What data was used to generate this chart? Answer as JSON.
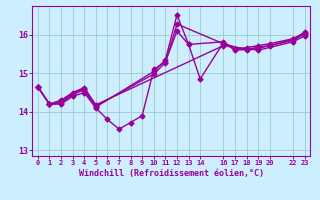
{
  "xlabel": "Windchill (Refroidissement éolien,°C)",
  "background_color": "#cceeff",
  "line_color": "#990099",
  "marker": "D",
  "markersize": 2.5,
  "linewidth": 1.0,
  "xlim": [
    -0.5,
    23.5
  ],
  "ylim": [
    12.85,
    16.75
  ],
  "yticks": [
    13,
    14,
    15,
    16
  ],
  "xticks": [
    0,
    1,
    2,
    3,
    4,
    5,
    6,
    7,
    8,
    9,
    10,
    11,
    12,
    13,
    14,
    16,
    17,
    18,
    19,
    20,
    22,
    23
  ],
  "grid_color": "#99cccc",
  "series1_x": [
    0,
    1,
    2,
    3,
    4,
    5,
    6,
    7,
    8,
    9,
    10,
    11,
    12,
    13,
    14,
    16,
    17,
    18,
    19,
    20,
    22,
    23
  ],
  "series1_y": [
    14.65,
    14.2,
    14.2,
    14.4,
    14.5,
    14.1,
    13.8,
    13.55,
    13.72,
    13.9,
    15.1,
    15.3,
    16.1,
    15.75,
    14.85,
    15.8,
    15.6,
    15.62,
    15.68,
    15.72,
    15.88,
    16.07
  ],
  "series2_x": [
    0,
    1,
    2,
    3,
    4,
    5,
    10,
    11,
    12,
    13,
    16,
    17,
    18,
    19,
    20,
    22,
    23
  ],
  "series2_y": [
    14.65,
    14.2,
    14.22,
    14.45,
    14.57,
    14.12,
    15.05,
    15.35,
    16.52,
    15.75,
    15.82,
    15.62,
    15.67,
    15.72,
    15.77,
    15.9,
    16.05
  ],
  "series3_x": [
    0,
    1,
    2,
    3,
    4,
    5,
    10,
    11,
    12,
    16,
    18,
    19,
    22,
    23
  ],
  "series3_y": [
    14.65,
    14.2,
    14.27,
    14.47,
    14.6,
    14.15,
    14.98,
    15.28,
    16.28,
    15.77,
    15.6,
    15.65,
    15.86,
    16.02
  ],
  "series4_x": [
    0,
    1,
    2,
    3,
    4,
    5,
    16,
    19,
    22,
    23
  ],
  "series4_y": [
    14.65,
    14.2,
    14.3,
    14.5,
    14.63,
    14.18,
    15.72,
    15.6,
    15.82,
    15.97
  ]
}
